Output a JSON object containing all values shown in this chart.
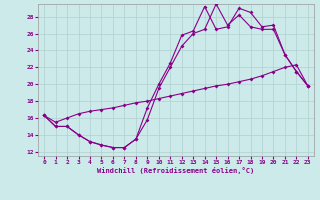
{
  "xlabel": "Windchill (Refroidissement éolien,°C)",
  "xlim": [
    -0.5,
    23.5
  ],
  "ylim": [
    11.5,
    29.5
  ],
  "xticks": [
    0,
    1,
    2,
    3,
    4,
    5,
    6,
    7,
    8,
    9,
    10,
    11,
    12,
    13,
    14,
    15,
    16,
    17,
    18,
    19,
    20,
    21,
    22,
    23
  ],
  "yticks": [
    12,
    14,
    16,
    18,
    20,
    22,
    24,
    26,
    28
  ],
  "background_color": "#cdeaea",
  "grid_color": "#b0d0d0",
  "line_color": "#880088",
  "line1_x": [
    0,
    1,
    2,
    3,
    4,
    5,
    6,
    7,
    8,
    9,
    10,
    11,
    12,
    13,
    14,
    15,
    16,
    17,
    18,
    19,
    20,
    21,
    22,
    23
  ],
  "line1_y": [
    16.3,
    15.0,
    15.0,
    14.0,
    13.2,
    12.8,
    12.5,
    12.5,
    13.5,
    17.2,
    20.0,
    22.5,
    25.8,
    26.3,
    29.2,
    26.5,
    26.8,
    29.0,
    28.5,
    26.8,
    27.0,
    23.5,
    21.5,
    19.8
  ],
  "line2_x": [
    0,
    1,
    2,
    3,
    4,
    5,
    6,
    7,
    8,
    9,
    10,
    11,
    12,
    13,
    14,
    15,
    16,
    17,
    18,
    19,
    20,
    21,
    22,
    23
  ],
  "line2_y": [
    16.3,
    15.0,
    15.0,
    14.0,
    13.2,
    12.8,
    12.5,
    12.5,
    13.5,
    15.8,
    19.5,
    22.0,
    24.5,
    26.0,
    26.5,
    29.5,
    27.0,
    28.2,
    26.8,
    26.5,
    26.5,
    23.5,
    21.5,
    19.8
  ],
  "line3_x": [
    0,
    1,
    2,
    3,
    4,
    5,
    6,
    7,
    8,
    9,
    10,
    11,
    12,
    13,
    14,
    15,
    16,
    17,
    18,
    19,
    20,
    21,
    22,
    23
  ],
  "line3_y": [
    16.3,
    15.5,
    16.0,
    16.5,
    16.8,
    17.0,
    17.2,
    17.5,
    17.8,
    18.0,
    18.3,
    18.6,
    18.9,
    19.2,
    19.5,
    19.8,
    20.0,
    20.3,
    20.6,
    21.0,
    21.5,
    22.0,
    22.3,
    19.8
  ]
}
